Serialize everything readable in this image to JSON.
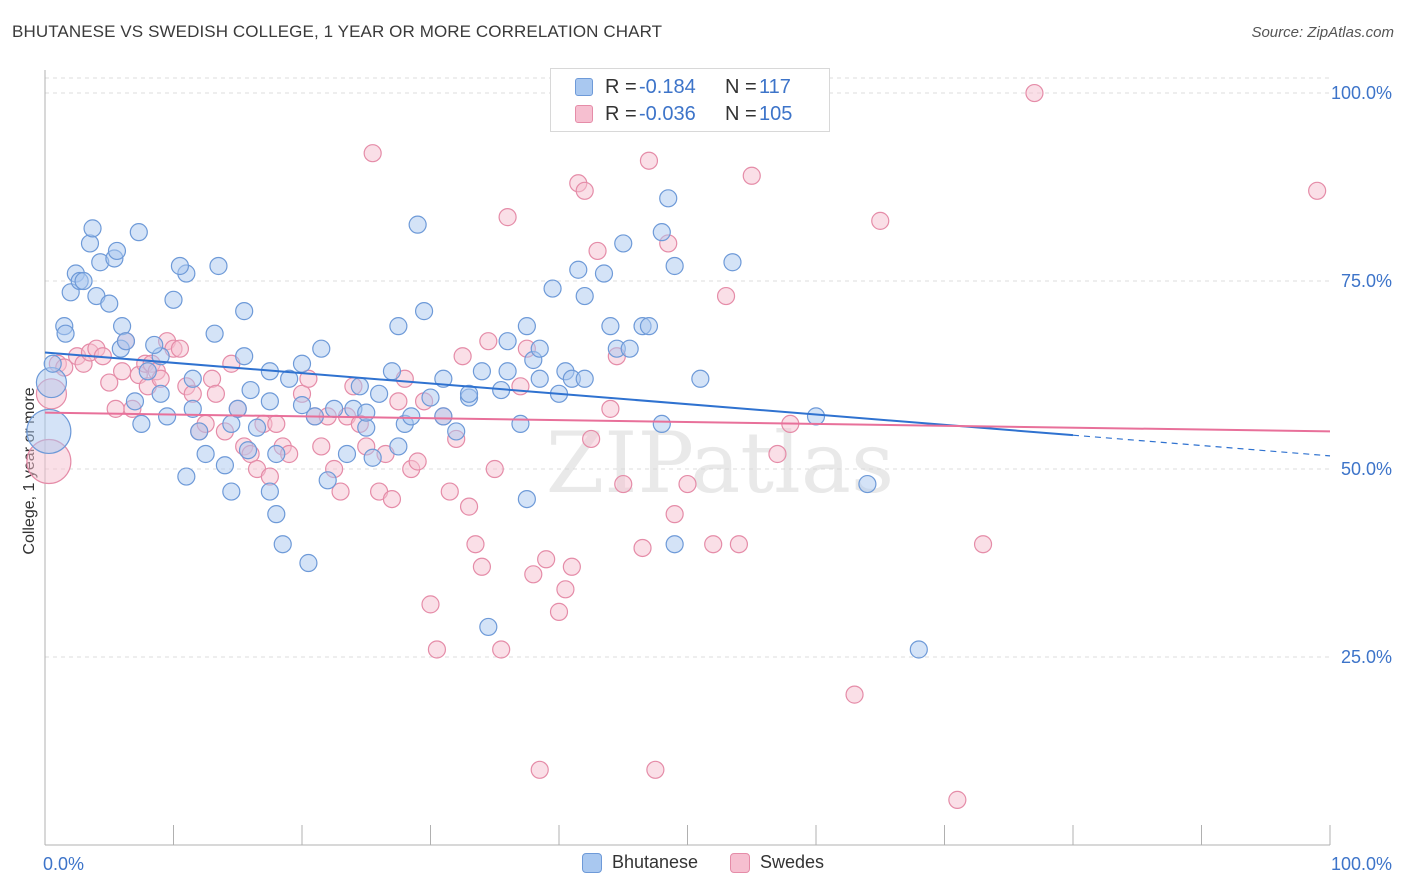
{
  "header": {
    "title": "BHUTANESE VS SWEDISH COLLEGE, 1 YEAR OR MORE CORRELATION CHART",
    "source": "Source: ZipAtlas.com"
  },
  "colors": {
    "blue_fill": "#a9c8f0",
    "blue_stroke": "#6e9ad8",
    "blue_line": "#2f72d0",
    "pink_fill": "#f6bfd0",
    "pink_stroke": "#e58ca8",
    "pink_line": "#e8709a",
    "tick_text": "#3d74c9",
    "grid": "#dcdcdc"
  },
  "legend": {
    "rows": [
      {
        "r_label": "R =",
        "r_value": "-0.184",
        "n_label": "N =",
        "n_value": "117"
      },
      {
        "r_label": "R =",
        "r_value": "-0.036",
        "n_label": "N =",
        "n_value": "105"
      }
    ],
    "bottom": [
      "Bhutanese",
      "Swedes"
    ]
  },
  "chart_data": {
    "type": "scatter",
    "xlabel": "",
    "ylabel": "College, 1 year or more",
    "xlim": [
      0,
      100
    ],
    "ylim": [
      0,
      102
    ],
    "x_tick_labels": [
      "0.0%",
      "100.0%"
    ],
    "y_ticks": [
      25,
      50,
      75,
      100
    ],
    "y_tick_labels": [
      "25.0%",
      "50.0%",
      "75.0%",
      "100.0%"
    ],
    "grid": "horizontal dashed",
    "legend_position": "top-center",
    "watermark": "ZIPatlas",
    "series": [
      {
        "name": "Bhutanese",
        "color": "blue",
        "trend": {
          "x": [
            0,
            80
          ],
          "y": [
            65.5,
            54.5
          ],
          "dashed_extension_to_x": 100
        },
        "points": [
          [
            0.3,
            55,
            4
          ],
          [
            0.5,
            61.5,
            2
          ],
          [
            0.6,
            64,
            1
          ],
          [
            1.5,
            69,
            1
          ],
          [
            1.6,
            68,
            1
          ],
          [
            2,
            73.5,
            1
          ],
          [
            2.4,
            76,
            1
          ],
          [
            2.7,
            75,
            1
          ],
          [
            3,
            75,
            1
          ],
          [
            3.5,
            80,
            1
          ],
          [
            3.7,
            82,
            1
          ],
          [
            4,
            73,
            1
          ],
          [
            4.3,
            77.5,
            1
          ],
          [
            5,
            72,
            1
          ],
          [
            5.4,
            78,
            1
          ],
          [
            5.6,
            79,
            1
          ],
          [
            5.9,
            66,
            1
          ],
          [
            6,
            69,
            1
          ],
          [
            7.3,
            81.5,
            1
          ],
          [
            7.5,
            56,
            1
          ],
          [
            8,
            63,
            1
          ],
          [
            9,
            60,
            1
          ],
          [
            9,
            65,
            1
          ],
          [
            7,
            59,
            1
          ],
          [
            6.3,
            67,
            1
          ],
          [
            8.5,
            66.5,
            1
          ],
          [
            9.5,
            57,
            1
          ],
          [
            10,
            72.5,
            1
          ],
          [
            11,
            76,
            1
          ],
          [
            11,
            49,
            1
          ],
          [
            11.5,
            58,
            1
          ],
          [
            12,
            55,
            1
          ],
          [
            10.5,
            77,
            1
          ],
          [
            11.5,
            62,
            1
          ],
          [
            12.5,
            52,
            1
          ],
          [
            13.2,
            68,
            1
          ],
          [
            13.5,
            77,
            1
          ],
          [
            14,
            50.5,
            1
          ],
          [
            14.5,
            56,
            1
          ],
          [
            14.5,
            47,
            1
          ],
          [
            15,
            58,
            1
          ],
          [
            15.5,
            71,
            1
          ],
          [
            15.5,
            65,
            1
          ],
          [
            15.8,
            52.5,
            1
          ],
          [
            16,
            60.5,
            1
          ],
          [
            16.5,
            55.5,
            1
          ],
          [
            17.5,
            63,
            1
          ],
          [
            17.5,
            59,
            1
          ],
          [
            18,
            44,
            1
          ],
          [
            18,
            52,
            1
          ],
          [
            18.5,
            40,
            1
          ],
          [
            17.5,
            47,
            1
          ],
          [
            19,
            62,
            1
          ],
          [
            20,
            58.5,
            1
          ],
          [
            20,
            64,
            1
          ],
          [
            20.5,
            37.5,
            1
          ],
          [
            21,
            57,
            1
          ],
          [
            21.5,
            66,
            1
          ],
          [
            22,
            48.5,
            1
          ],
          [
            22.5,
            58,
            1
          ],
          [
            23.5,
            52,
            1
          ],
          [
            24,
            58,
            1
          ],
          [
            24.5,
            61,
            1
          ],
          [
            25,
            55.5,
            1
          ],
          [
            25,
            57.5,
            1
          ],
          [
            25.5,
            51.5,
            1
          ],
          [
            26,
            60,
            1
          ],
          [
            27,
            63,
            1
          ],
          [
            27.5,
            69,
            1
          ],
          [
            27.5,
            53,
            1
          ],
          [
            28,
            56,
            1
          ],
          [
            28.5,
            57,
            1
          ],
          [
            29,
            82.5,
            1
          ],
          [
            29.5,
            71,
            1
          ],
          [
            30,
            59.5,
            1
          ],
          [
            31,
            57,
            1
          ],
          [
            31,
            62,
            1
          ],
          [
            32,
            55,
            1
          ],
          [
            33,
            59.5,
            1
          ],
          [
            33,
            60,
            1
          ],
          [
            34,
            63,
            1
          ],
          [
            34.5,
            29,
            1
          ],
          [
            35.5,
            60.5,
            1
          ],
          [
            36,
            67,
            1
          ],
          [
            36,
            63,
            1
          ],
          [
            37,
            56,
            1
          ],
          [
            37.5,
            69,
            1
          ],
          [
            37.5,
            46,
            1
          ],
          [
            38,
            64.5,
            1
          ],
          [
            38.5,
            62,
            1
          ],
          [
            38.5,
            66,
            1
          ],
          [
            39.5,
            74,
            1
          ],
          [
            40,
            60,
            1
          ],
          [
            40.5,
            63,
            1
          ],
          [
            41,
            62,
            1
          ],
          [
            41.5,
            76.5,
            1
          ],
          [
            42,
            73,
            1
          ],
          [
            42,
            62,
            1
          ],
          [
            43.5,
            76,
            1
          ],
          [
            44,
            69,
            1
          ],
          [
            44.5,
            66,
            1
          ],
          [
            45,
            80,
            1
          ],
          [
            45.5,
            66,
            1
          ],
          [
            46.5,
            69,
            1
          ],
          [
            47,
            69,
            1
          ],
          [
            48,
            56,
            1
          ],
          [
            48,
            81.5,
            1
          ],
          [
            48.5,
            86,
            1
          ],
          [
            49,
            40,
            1
          ],
          [
            49,
            77,
            1
          ],
          [
            51,
            62,
            1
          ],
          [
            53.5,
            77.5,
            1
          ],
          [
            60,
            57,
            1
          ],
          [
            64,
            48,
            1
          ],
          [
            68,
            26,
            1
          ]
        ]
      },
      {
        "name": "Swedes",
        "color": "pink",
        "trend": {
          "x": [
            0,
            100
          ],
          "y": [
            57.5,
            55
          ]
        },
        "points": [
          [
            0.3,
            51,
            3
          ],
          [
            0.5,
            60,
            2
          ],
          [
            1,
            64,
            1
          ],
          [
            1.5,
            63.5,
            1
          ],
          [
            2.5,
            65,
            1
          ],
          [
            3,
            64,
            1
          ],
          [
            3.5,
            65.5,
            1
          ],
          [
            4,
            66,
            1
          ],
          [
            4.5,
            65,
            1
          ],
          [
            5,
            61.5,
            1
          ],
          [
            5.5,
            58,
            1
          ],
          [
            6,
            63,
            1
          ],
          [
            6.3,
            67,
            1
          ],
          [
            6.8,
            58,
            1
          ],
          [
            7.3,
            62.5,
            1
          ],
          [
            7.8,
            64,
            1
          ],
          [
            8,
            61,
            1
          ],
          [
            8.3,
            64,
            1
          ],
          [
            8.7,
            63,
            1
          ],
          [
            9,
            62,
            1
          ],
          [
            9.5,
            67,
            1
          ],
          [
            10,
            66,
            1
          ],
          [
            10.5,
            66,
            1
          ],
          [
            11,
            61,
            1
          ],
          [
            11.5,
            60,
            1
          ],
          [
            12,
            55,
            1
          ],
          [
            12.5,
            56,
            1
          ],
          [
            13,
            62,
            1
          ],
          [
            13.3,
            60,
            1
          ],
          [
            14,
            55,
            1
          ],
          [
            14.5,
            64,
            1
          ],
          [
            15,
            58,
            1
          ],
          [
            15.5,
            53,
            1
          ],
          [
            16,
            52,
            1
          ],
          [
            16.5,
            50,
            1
          ],
          [
            17,
            56,
            1
          ],
          [
            17.5,
            49,
            1
          ],
          [
            18,
            56,
            1
          ],
          [
            18.5,
            53,
            1
          ],
          [
            19,
            52,
            1
          ],
          [
            20,
            60,
            1
          ],
          [
            20.5,
            62,
            1
          ],
          [
            21,
            57,
            1
          ],
          [
            21.5,
            53,
            1
          ],
          [
            22,
            57,
            1
          ],
          [
            22.5,
            50,
            1
          ],
          [
            23,
            47,
            1
          ],
          [
            23.5,
            57,
            1
          ],
          [
            24,
            61,
            1
          ],
          [
            24.5,
            56,
            1
          ],
          [
            25,
            53,
            1
          ],
          [
            25.5,
            92,
            1
          ],
          [
            26,
            47,
            1
          ],
          [
            26.5,
            52,
            1
          ],
          [
            27,
            46,
            1
          ],
          [
            27.5,
            59,
            1
          ],
          [
            28,
            62,
            1
          ],
          [
            28.5,
            50,
            1
          ],
          [
            29,
            51,
            1
          ],
          [
            29.5,
            59,
            1
          ],
          [
            30,
            32,
            1
          ],
          [
            30.5,
            26,
            1
          ],
          [
            31,
            57,
            1
          ],
          [
            31.5,
            47,
            1
          ],
          [
            32,
            54,
            1
          ],
          [
            32.5,
            65,
            1
          ],
          [
            33,
            45,
            1
          ],
          [
            33.5,
            40,
            1
          ],
          [
            34,
            37,
            1
          ],
          [
            34.5,
            67,
            1
          ],
          [
            35,
            50,
            1
          ],
          [
            35.5,
            26,
            1
          ],
          [
            36,
            83.5,
            1
          ],
          [
            37,
            61,
            1
          ],
          [
            37.5,
            66,
            1
          ],
          [
            38,
            36,
            1
          ],
          [
            38.5,
            10,
            1
          ],
          [
            39,
            38,
            1
          ],
          [
            40,
            31,
            1
          ],
          [
            40.5,
            34,
            1
          ],
          [
            41,
            37,
            1
          ],
          [
            41.5,
            88,
            1
          ],
          [
            42,
            87,
            1
          ],
          [
            42.5,
            54,
            1
          ],
          [
            43,
            79,
            1
          ],
          [
            44,
            58,
            1
          ],
          [
            44.5,
            65,
            1
          ],
          [
            45,
            48,
            1
          ],
          [
            46.5,
            39.5,
            1
          ],
          [
            47,
            91,
            1
          ],
          [
            47.5,
            10,
            1
          ],
          [
            48.5,
            80,
            1
          ],
          [
            49,
            44,
            1
          ],
          [
            50,
            48,
            1
          ],
          [
            52,
            40,
            1
          ],
          [
            53,
            73,
            1
          ],
          [
            54,
            40,
            1
          ],
          [
            55,
            89,
            1
          ],
          [
            57,
            52,
            1
          ],
          [
            58,
            56,
            1
          ],
          [
            63,
            20,
            1
          ],
          [
            65,
            83,
            1
          ],
          [
            71,
            6,
            1
          ],
          [
            73,
            40,
            1
          ],
          [
            77,
            100,
            1
          ],
          [
            99,
            87,
            1
          ]
        ]
      }
    ]
  }
}
